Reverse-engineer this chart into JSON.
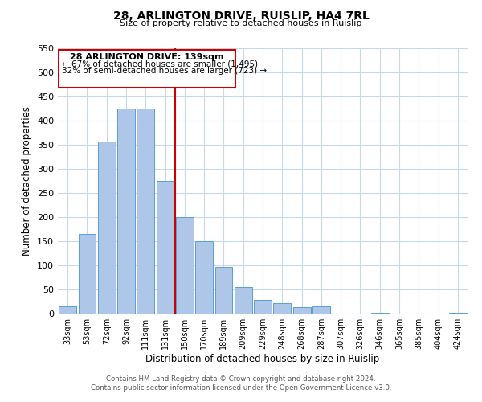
{
  "title": "28, ARLINGTON DRIVE, RUISLIP, HA4 7RL",
  "subtitle": "Size of property relative to detached houses in Ruislip",
  "xlabel": "Distribution of detached houses by size in Ruislip",
  "ylabel": "Number of detached properties",
  "bar_labels": [
    "33sqm",
    "53sqm",
    "72sqm",
    "92sqm",
    "111sqm",
    "131sqm",
    "150sqm",
    "170sqm",
    "189sqm",
    "209sqm",
    "229sqm",
    "248sqm",
    "268sqm",
    "287sqm",
    "307sqm",
    "326sqm",
    "346sqm",
    "365sqm",
    "385sqm",
    "404sqm",
    "424sqm"
  ],
  "bar_values": [
    15,
    165,
    357,
    425,
    425,
    275,
    200,
    150,
    97,
    55,
    28,
    22,
    14,
    15,
    0,
    0,
    2,
    0,
    0,
    0,
    2
  ],
  "bar_color": "#aec6e8",
  "bar_edgecolor": "#5a9fd4",
  "property_line_x": 5.5,
  "property_line_color": "#cc0000",
  "ylim": [
    0,
    550
  ],
  "yticks": [
    0,
    50,
    100,
    150,
    200,
    250,
    300,
    350,
    400,
    450,
    500,
    550
  ],
  "annotation_title": "28 ARLINGTON DRIVE: 139sqm",
  "annotation_line1": "← 67% of detached houses are smaller (1,495)",
  "annotation_line2": "32% of semi-detached houses are larger (723) →",
  "footer_line1": "Contains HM Land Registry data © Crown copyright and database right 2024.",
  "footer_line2": "Contains public sector information licensed under the Open Government Licence v3.0.",
  "bg_color": "#ffffff",
  "grid_color": "#c8d8e8"
}
